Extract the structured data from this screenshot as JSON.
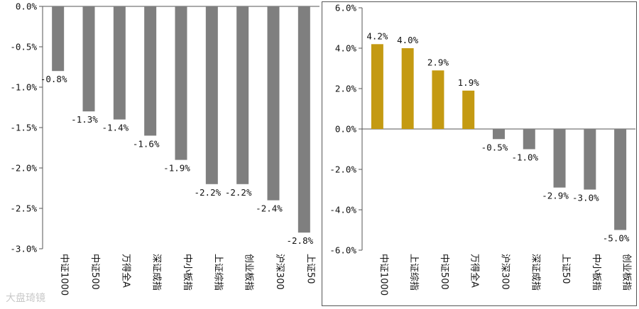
{
  "chart_data": [
    {
      "type": "bar",
      "categories": [
        "中证1000",
        "中证500",
        "万得全A",
        "深证成指",
        "中小板指",
        "上证综指",
        "创业板指",
        "沪深300",
        "上证50"
      ],
      "values": [
        -0.8,
        -1.3,
        -1.4,
        -1.6,
        -1.9,
        -2.2,
        -2.2,
        -2.4,
        -2.8
      ],
      "labels": [
        "-0.8%",
        "-1.3%",
        "-1.4%",
        "-1.6%",
        "-1.9%",
        "-2.2%",
        "-2.2%",
        "-2.4%",
        "-2.8%"
      ],
      "ylim": [
        -3.0,
        0.0
      ],
      "yticks": [
        0.0,
        -0.5,
        -1.0,
        -1.5,
        -2.0,
        -2.5,
        -3.0
      ],
      "ytick_labels": [
        "0.0%",
        "-0.5%",
        "-1.0%",
        "-1.5%",
        "-2.0%",
        "-2.5%",
        "-3.0%"
      ],
      "colors": {
        "negative": "#7f7f7f",
        "positive": "#c49a12"
      },
      "grid": false
    },
    {
      "type": "bar",
      "categories": [
        "中证1000",
        "上证综指",
        "中证500",
        "万得全A",
        "沪深300",
        "深证成指",
        "上证50",
        "中小板指",
        "创业板指"
      ],
      "values": [
        4.2,
        4.0,
        2.9,
        1.9,
        -0.5,
        -1.0,
        -2.9,
        -3.0,
        -5.0
      ],
      "labels": [
        "4.2%",
        "4.0%",
        "2.9%",
        "1.9%",
        "-0.5%",
        "-1.0%",
        "-2.9%",
        "-3.0%",
        "-5.0%"
      ],
      "ylim": [
        -6.0,
        6.0
      ],
      "yticks": [
        6.0,
        4.0,
        2.0,
        0.0,
        -2.0,
        -4.0,
        -6.0
      ],
      "ytick_labels": [
        "6.0%",
        "4.0%",
        "2.0%",
        "0.0%",
        "-2.0%",
        "-4.0%",
        "-6.0%"
      ],
      "colors": {
        "negative": "#7f7f7f",
        "positive": "#c49a12"
      },
      "grid": false
    }
  ],
  "watermark": "大盘琦镜"
}
